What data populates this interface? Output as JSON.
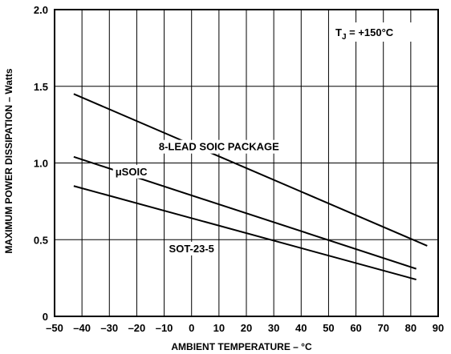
{
  "chart_data": {
    "type": "line",
    "title": "",
    "xlabel": "AMBIENT TEMPERATURE – °C",
    "ylabel": "MAXIMUM POWER DISSIPATION – Watts",
    "xlim": [
      -50,
      90
    ],
    "ylim": [
      0,
      2.0
    ],
    "x_ticks": [
      "–50",
      "–40",
      "–30",
      "–20",
      "–10",
      "0",
      "10",
      "20",
      "30",
      "40",
      "50",
      "60",
      "70",
      "80",
      "90"
    ],
    "y_ticks": [
      "0",
      "0.5",
      "1.0",
      "1.5",
      "2.0"
    ],
    "grid": true,
    "condition_label": {
      "main": "T",
      "sub": "J",
      "rest": " = +150°C"
    },
    "series": [
      {
        "name": "8-LEAD SOIC PACKAGE",
        "x": [
          -43,
          86
        ],
        "y": [
          1.45,
          0.46
        ]
      },
      {
        "name": "μSOIC",
        "x": [
          -43,
          82
        ],
        "y": [
          1.04,
          0.31
        ]
      },
      {
        "name": "SOT-23-5",
        "x": [
          -43,
          82
        ],
        "y": [
          0.85,
          0.24
        ]
      }
    ]
  }
}
